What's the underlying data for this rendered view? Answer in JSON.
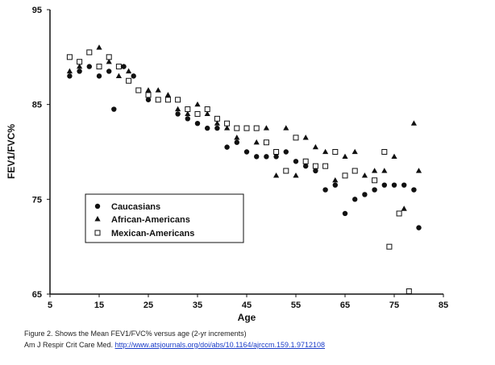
{
  "chart_data": {
    "type": "scatter",
    "xlabel": "Age",
    "ylabel": "FEV1/FVC%",
    "xlim": [
      5,
      85
    ],
    "ylim": [
      65,
      95
    ],
    "xticks": [
      "5",
      "15",
      "25",
      "35",
      "45",
      "55",
      "65",
      "75",
      "85"
    ],
    "yticks": [
      "65",
      "75",
      "85",
      "95"
    ],
    "legend_position": "bottom-left",
    "series": [
      {
        "name": "Caucasians",
        "marker": "circle",
        "points": [
          [
            9,
            88.0
          ],
          [
            11,
            88.5
          ],
          [
            13,
            89.0
          ],
          [
            15,
            88.0
          ],
          [
            17,
            88.5
          ],
          [
            18,
            84.5
          ],
          [
            20,
            89.0
          ],
          [
            22,
            88.0
          ],
          [
            25,
            85.5
          ],
          [
            27,
            85.5
          ],
          [
            29,
            85.5
          ],
          [
            31,
            84.0
          ],
          [
            33,
            83.5
          ],
          [
            35,
            83.0
          ],
          [
            37,
            82.5
          ],
          [
            39,
            82.5
          ],
          [
            41,
            80.5
          ],
          [
            43,
            81.0
          ],
          [
            45,
            80.0
          ],
          [
            47,
            79.5
          ],
          [
            49,
            79.5
          ],
          [
            51,
            79.5
          ],
          [
            53,
            80.0
          ],
          [
            55,
            79.0
          ],
          [
            57,
            78.5
          ],
          [
            59,
            78.0
          ],
          [
            61,
            76.0
          ],
          [
            63,
            76.5
          ],
          [
            65,
            73.5
          ],
          [
            67,
            75.0
          ],
          [
            69,
            75.5
          ],
          [
            71,
            76.0
          ],
          [
            73,
            76.5
          ],
          [
            75,
            76.5
          ],
          [
            77,
            76.5
          ],
          [
            79,
            76.0
          ],
          [
            80,
            72.0
          ]
        ]
      },
      {
        "name": "African-Americans",
        "marker": "triangle",
        "points": [
          [
            9,
            88.5
          ],
          [
            11,
            89.0
          ],
          [
            13,
            90.5
          ],
          [
            15,
            91.0
          ],
          [
            17,
            89.5
          ],
          [
            19,
            88.0
          ],
          [
            21,
            88.5
          ],
          [
            25,
            86.5
          ],
          [
            27,
            86.5
          ],
          [
            29,
            86.0
          ],
          [
            31,
            84.5
          ],
          [
            33,
            84.0
          ],
          [
            35,
            85.0
          ],
          [
            37,
            84.0
          ],
          [
            39,
            83.0
          ],
          [
            41,
            82.5
          ],
          [
            43,
            81.5
          ],
          [
            45,
            82.5
          ],
          [
            47,
            81.0
          ],
          [
            49,
            82.5
          ],
          [
            51,
            77.5
          ],
          [
            53,
            82.5
          ],
          [
            55,
            77.5
          ],
          [
            57,
            81.5
          ],
          [
            59,
            80.5
          ],
          [
            61,
            80.0
          ],
          [
            63,
            77.0
          ],
          [
            65,
            79.5
          ],
          [
            67,
            80.0
          ],
          [
            69,
            77.5
          ],
          [
            71,
            78.0
          ],
          [
            73,
            78.0
          ],
          [
            75,
            79.5
          ],
          [
            77,
            74.0
          ],
          [
            79,
            83.0
          ],
          [
            80,
            78.0
          ]
        ]
      },
      {
        "name": "Mexican-Americans",
        "marker": "square",
        "points": [
          [
            9,
            90.0
          ],
          [
            11,
            89.5
          ],
          [
            13,
            90.5
          ],
          [
            15,
            89.0
          ],
          [
            17,
            90.0
          ],
          [
            19,
            89.0
          ],
          [
            21,
            87.5
          ],
          [
            23,
            86.5
          ],
          [
            25,
            86.0
          ],
          [
            27,
            85.5
          ],
          [
            29,
            85.5
          ],
          [
            31,
            85.5
          ],
          [
            33,
            84.5
          ],
          [
            35,
            84.0
          ],
          [
            37,
            84.5
          ],
          [
            39,
            83.5
          ],
          [
            41,
            83.0
          ],
          [
            43,
            82.5
          ],
          [
            45,
            82.5
          ],
          [
            47,
            82.5
          ],
          [
            49,
            81.0
          ],
          [
            51,
            80.0
          ],
          [
            53,
            78.0
          ],
          [
            55,
            81.5
          ],
          [
            57,
            79.0
          ],
          [
            59,
            78.5
          ],
          [
            61,
            78.5
          ],
          [
            63,
            80.0
          ],
          [
            65,
            77.5
          ],
          [
            67,
            78.0
          ],
          [
            71,
            77.0
          ],
          [
            73,
            80.0
          ],
          [
            74,
            70.0
          ],
          [
            76,
            73.5
          ],
          [
            78,
            65.3
          ]
        ]
      }
    ]
  },
  "caption": {
    "line1": "Figure 2. Shows the Mean FEV1/FVC% versus age (2-yr increments)",
    "line2_prefix": "Am J Respir Crit Care Med.",
    "line2_link": "http://www.atsjournals.org/doi/abs/10.1164/ajrccm.159.1.9712108"
  }
}
